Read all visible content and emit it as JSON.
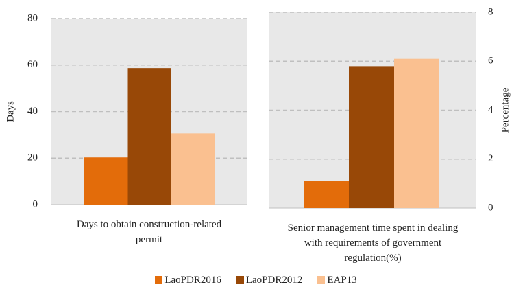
{
  "chart_data": [
    {
      "type": "bar",
      "categories": [
        "Days to obtain construction-related permit"
      ],
      "y_label": "Days",
      "series": [
        {
          "name": "LaoPDR2016",
          "color": "#e36c0a",
          "values": [
            20.3
          ]
        },
        {
          "name": "LaoPDR2012",
          "color": "#984807",
          "values": [
            58.7
          ]
        },
        {
          "name": "EAP13",
          "color": "#fac090",
          "values": [
            30.6
          ]
        }
      ],
      "ylim": [
        0,
        80
      ],
      "yticks": [
        0,
        20,
        40,
        60,
        80
      ],
      "grid": true
    },
    {
      "type": "bar",
      "categories": [
        "Senior management time spent in dealing with requirements of government regulation(%)"
      ],
      "y_label": "Percentage",
      "series": [
        {
          "color": "#e36c0a",
          "values": [
            1.1
          ]
        },
        {
          "color": "#984807",
          "values": [
            5.8
          ]
        },
        {
          "color": "#fac090",
          "values": [
            6.1
          ]
        }
      ],
      "ylim": [
        0,
        8
      ],
      "yticks": [
        0,
        2,
        4,
        6,
        8
      ],
      "grid": true
    }
  ]
}
